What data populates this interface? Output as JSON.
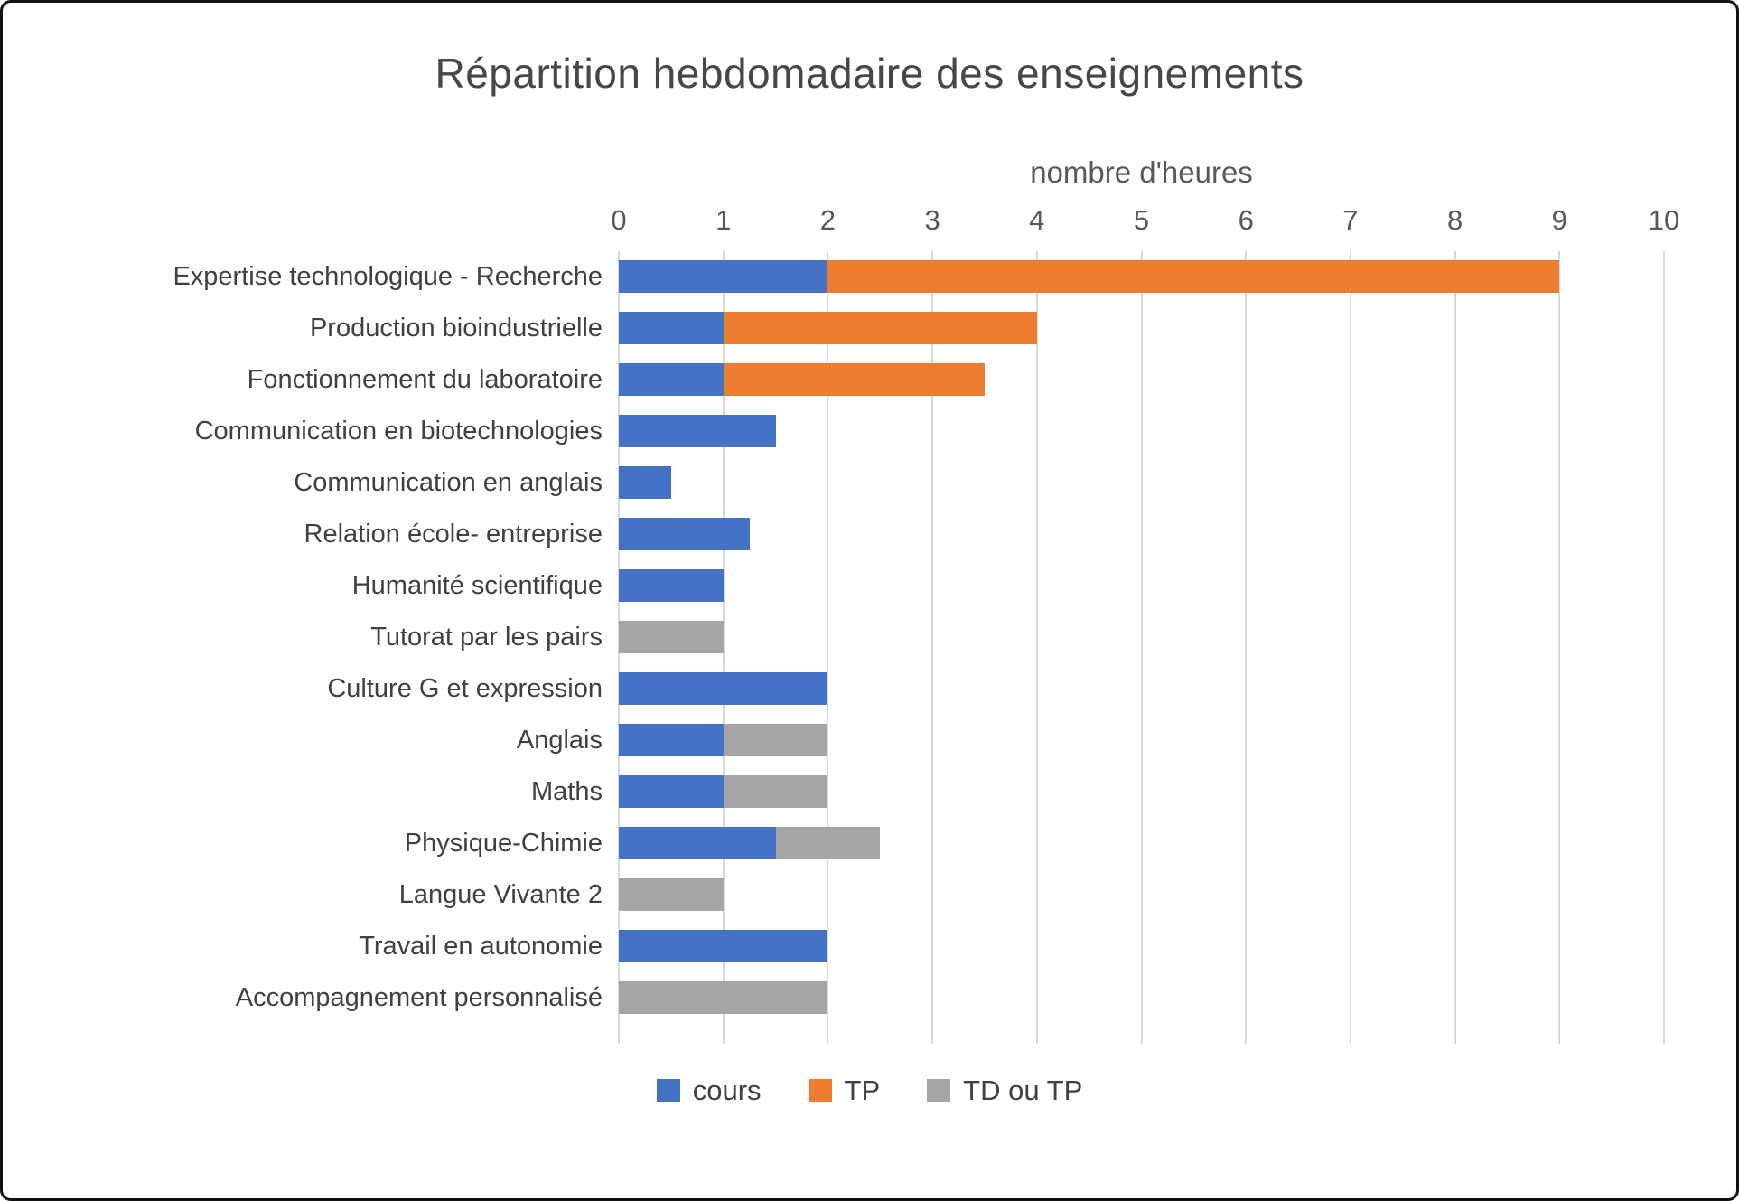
{
  "chart_data": {
    "type": "bar",
    "orientation": "horizontal",
    "stacked": true,
    "title": "Répartition hebdomadaire des enseignements",
    "xlabel": "nombre d'heures",
    "xlim": [
      0,
      10
    ],
    "xticks": [
      0,
      1,
      2,
      3,
      4,
      5,
      6,
      7,
      8,
      9,
      10
    ],
    "grid": true,
    "legend_position": "bottom",
    "categories": [
      "Expertise technologique - Recherche",
      "Production bioindustrielle",
      "Fonctionnement du laboratoire",
      "Communication en biotechnologies",
      "Communication en anglais",
      "Relation école- entreprise",
      "Humanité scientifique",
      "Tutorat par les pairs",
      "Culture G et expression",
      "Anglais",
      "Maths",
      "Physique-Chimie",
      "Langue Vivante 2",
      "Travail en autonomie",
      "Accompagnement personnalisé"
    ],
    "series": [
      {
        "name": "cours",
        "color": "#4472C4",
        "values": [
          2,
          1,
          1,
          1.5,
          0.5,
          1.25,
          1,
          0,
          2,
          1,
          1,
          1.5,
          0,
          2,
          0
        ]
      },
      {
        "name": "TP",
        "color": "#ED7D31",
        "values": [
          7,
          3,
          2.5,
          0,
          0,
          0,
          0,
          0,
          0,
          0,
          0,
          0,
          0,
          0,
          0
        ]
      },
      {
        "name": "TD ou TP",
        "color": "#A5A5A5",
        "values": [
          0,
          0,
          0,
          0,
          0,
          0,
          0,
          1,
          0,
          1,
          1,
          1,
          1,
          0,
          2
        ]
      }
    ]
  }
}
